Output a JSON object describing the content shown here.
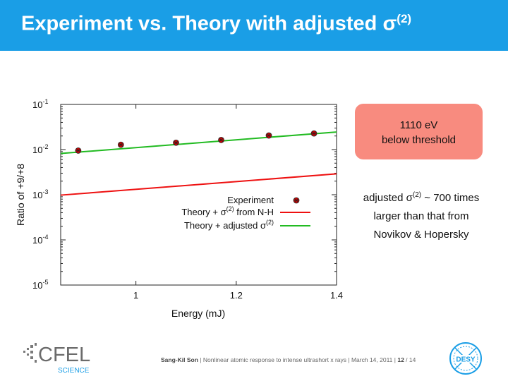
{
  "header": {
    "title": "Experiment vs. Theory with adjusted σ",
    "title_sup": "(2)",
    "background": "#1a9ee6"
  },
  "chart_data": {
    "type": "scatter",
    "xlabel": "Energy (mJ)",
    "ylabel": "Ratio of +9/+8",
    "xlim": [
      0.85,
      1.4
    ],
    "ylim": [
      1e-05,
      0.1
    ],
    "yscale": "log",
    "x_ticks": [
      "1",
      "1.2",
      "1.4"
    ],
    "x_tick_values": [
      1.0,
      1.2,
      1.4
    ],
    "y_ticks": [
      {
        "base": "10",
        "exp": "-1",
        "value": 0.1
      },
      {
        "base": "10",
        "exp": "-2",
        "value": 0.01
      },
      {
        "base": "10",
        "exp": "-3",
        "value": 0.001
      },
      {
        "base": "10",
        "exp": "-4",
        "value": 0.0001
      },
      {
        "base": "10",
        "exp": "-5",
        "value": 1e-05
      }
    ],
    "legend_position": "center-right",
    "series": [
      {
        "name": "Experiment",
        "kind": "points",
        "color": "#cc0000",
        "x": [
          0.885,
          0.97,
          1.08,
          1.17,
          1.265,
          1.355
        ],
        "y": [
          0.0095,
          0.0128,
          0.0142,
          0.0163,
          0.0205,
          0.0228
        ]
      },
      {
        "name": "Theory + σ(2) from N-H",
        "label_main": "Theory + σ",
        "label_sup": "(2)",
        "label_tail": " from N-H",
        "kind": "line",
        "color": "#ee1111",
        "x": [
          0.85,
          1.4
        ],
        "y": [
          0.00098,
          0.0029
        ]
      },
      {
        "name": "Theory + adjusted σ(2)",
        "label_main": "Theory + adjusted σ",
        "label_sup": "(2)",
        "label_tail": "",
        "kind": "line",
        "color": "#22bb22",
        "x": [
          0.85,
          1.4
        ],
        "y": [
          0.0082,
          0.0245
        ]
      }
    ]
  },
  "callout": {
    "line1": "1110 eV",
    "line2": "below threshold",
    "color": "#f88b7f"
  },
  "note": {
    "pre": "adjusted σ",
    "sup": "(2)",
    "post": " ~ 700 times",
    "line2": "larger than that from",
    "line3": "Novikov & Hopersky"
  },
  "footer": {
    "author": "Sang-Kil Son",
    "title": "Nonlinear atomic response to intense ultrashort x rays",
    "date": "March 14, 2011",
    "page": "12",
    "total": "14"
  },
  "logos": {
    "cfel_text": "CFEL",
    "science_text": "SCIENCE",
    "desy_text": "DESY"
  }
}
